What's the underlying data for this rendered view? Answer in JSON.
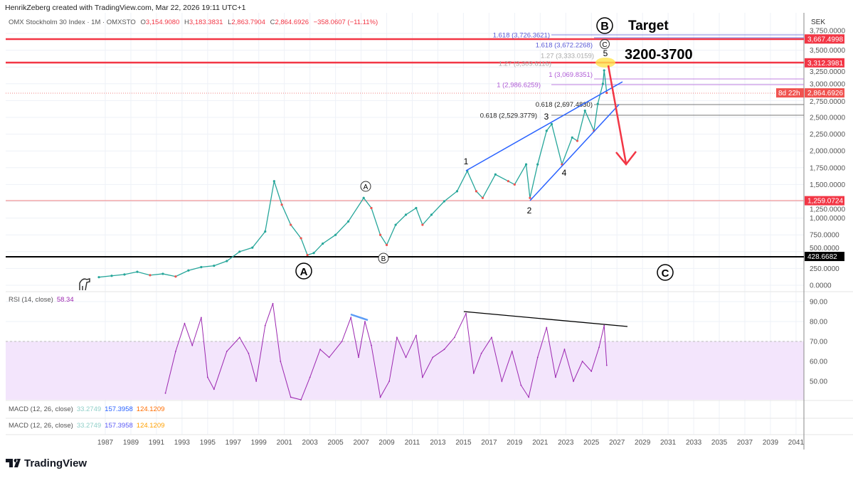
{
  "header": {
    "credit": "HenrikZeberg created with TradingView.com, Mar 22, 2026 19:11 UTC+1"
  },
  "legend": {
    "symbol": "OMX Stockholm 30 Index · 1M · OMXSTO",
    "o_label": "O",
    "open": "3,154.9080",
    "h_label": "H",
    "high": "3,183.3831",
    "l_label": "L",
    "low": "2,863.7904",
    "c_label": "C",
    "close": "2,864.6926",
    "change": "−358.0607 (−11.11%)"
  },
  "price_axis": {
    "currency": "SEK",
    "ticks": [
      "3,750.0000",
      "3,500.0000",
      "3,250.0000",
      "3,000.0000",
      "2,750.0000",
      "2,500.0000",
      "2,250.0000",
      "2,000.0000",
      "1,750.0000",
      "1,500.0000",
      "1,250.0000",
      "1,000.0000",
      "750.0000",
      "500.0000",
      "250.0000",
      "0.0000"
    ],
    "tick_values": [
      3750,
      3500,
      3250,
      3000,
      2750,
      2500,
      2250,
      2000,
      1750,
      1500,
      1250,
      1000,
      750,
      500,
      250,
      0
    ],
    "badges": [
      {
        "text": "3,667.4998",
        "value": 3667.4998,
        "color": "#f23645"
      },
      {
        "text": "3,312.3981",
        "value": 3312.3981,
        "color": "#f23645"
      },
      {
        "text": "2,864.6926",
        "value": 2864.6926,
        "color": "#f05350",
        "sub": "8d 22h"
      },
      {
        "text": "1,259.0724",
        "value": 1259.0724,
        "color": "#f23645"
      },
      {
        "text": "428.6682",
        "value": 428.6682,
        "color": "#000000"
      }
    ]
  },
  "time_axis": {
    "ticks": [
      "1987",
      "1989",
      "1991",
      "1993",
      "1995",
      "1997",
      "1999",
      "2001",
      "2003",
      "2005",
      "2007",
      "2009",
      "2011",
      "2013",
      "2015",
      "2017",
      "2019",
      "2021",
      "2023",
      "2025",
      "2027",
      "2029",
      "2031",
      "2033",
      "2035",
      "2037",
      "2039",
      "2041"
    ]
  },
  "fib_labels": [
    {
      "text": "1.618 (3,726.3621)",
      "value": 3726.3621,
      "color": "#5b5bd6"
    },
    {
      "text": "1.618 (3,672.2268)",
      "value": 3672.2268,
      "color": "#5b5bd6"
    },
    {
      "text": "1.27 (3,309.6116)",
      "value": 3309.6116,
      "color": "#aaaaaa"
    },
    {
      "text": "1.27 (3,333.0159)",
      "value": 3333.0159,
      "color": "#aaaaaa"
    },
    {
      "text": "1 (3,069.8351)",
      "value": 3069.8351,
      "color": "#b05cd6"
    },
    {
      "text": "1 (2,986.6259)",
      "value": 2986.6259,
      "color": "#b05cd6"
    },
    {
      "text": "0.618 (2,697.4830)",
      "value": 2697.483,
      "color": "#222222"
    },
    {
      "text": "0.618 (2,529.3779)",
      "value": 2529.3779,
      "color": "#222222"
    }
  ],
  "annotations": {
    "target": "Target",
    "range": "3200-3700",
    "wave_B_big": "B",
    "wave_C_small": "C",
    "wave_5": "5",
    "wave_1": "1",
    "wave_2": "2",
    "wave_3": "3",
    "wave_4": "4",
    "wave_A_small": "A",
    "wave_B_small": "B",
    "wave_A_big": "A",
    "wave_C_big": "C"
  },
  "rsi": {
    "label": "RSI (14, close)",
    "value": "58.34",
    "color": "#9c27b0",
    "ticks": [
      "90.00",
      "80.00",
      "70.00",
      "60.00",
      "50.00"
    ],
    "tick_values": [
      90,
      80,
      70,
      60,
      50
    ]
  },
  "macd": [
    {
      "label": "MACD (12, 26, close)",
      "v1": "33.2749",
      "v2": "157.3958",
      "v3": "124.1209",
      "c1": "#a5dbd6",
      "c2": "#2962ff",
      "c3": "#ff6d00"
    },
    {
      "label": "MACD (12, 26, close)",
      "v1": "33.2749",
      "v2": "157.3958",
      "v3": "124.1209",
      "c1": "#a5dbd6",
      "c2": "#2962ff",
      "c3": "#ffa000"
    }
  ],
  "footer": {
    "logo": "TradingView"
  },
  "chart_data": [
    {
      "type": "line",
      "title": "OMX Stockholm 30 Index · 1M · OMXSTO",
      "ylim": [
        0,
        3850
      ],
      "xlim": [
        1986,
        2042
      ],
      "grid": true,
      "x": [
        1986.5,
        1987.5,
        1988.5,
        1989.5,
        1990.5,
        1991.5,
        1992.5,
        1993.5,
        1994.5,
        1995.5,
        1996.5,
        1997.5,
        1998.5,
        1999.5,
        2000.2,
        2000.8,
        2001.5,
        2002.3,
        2002.8,
        2003.3,
        2004,
        2005,
        2006,
        2007.2,
        2007.8,
        2008.5,
        2009,
        2009.7,
        2010.5,
        2011.3,
        2011.8,
        2012.5,
        2013.5,
        2014.5,
        2015.3,
        2016,
        2016.5,
        2017.5,
        2018.5,
        2019,
        2019.9,
        2020.2,
        2020.8,
        2021.5,
        2021.9,
        2022.7,
        2023.5,
        2023.9,
        2024.5,
        2025.2,
        2025.5,
        2025.9,
        2026.0,
        2026.2
      ],
      "y": [
        120,
        140,
        160,
        200,
        150,
        170,
        130,
        220,
        270,
        290,
        360,
        500,
        560,
        800,
        1550,
        1200,
        900,
        700,
        450,
        480,
        620,
        750,
        950,
        1300,
        1150,
        750,
        600,
        900,
        1050,
        1150,
        900,
        1050,
        1250,
        1400,
        1700,
        1400,
        1300,
        1650,
        1550,
        1500,
        1800,
        1300,
        1800,
        2300,
        2400,
        1800,
        2200,
        2150,
        2600,
        2300,
        2700,
        3000,
        3200,
        2865
      ]
    },
    {
      "type": "line",
      "title": "RSI (14, close)",
      "ylim": [
        40,
        95
      ],
      "x": [
        1991.7,
        1992.5,
        1993.2,
        1993.8,
        1994.5,
        1995,
        1995.5,
        1996.5,
        1997.5,
        1998.2,
        1998.8,
        1999.5,
        2000.1,
        2000.7,
        2001.5,
        2002.3,
        2003,
        2003.8,
        2004.5,
        2005.5,
        2006.2,
        2006.8,
        2007.3,
        2007.8,
        2008.5,
        2009.2,
        2009.8,
        2010.5,
        2011.3,
        2011.8,
        2012.6,
        2013.5,
        2014.3,
        2015.2,
        2015.8,
        2016.4,
        2017.2,
        2018,
        2018.8,
        2019.5,
        2020.1,
        2020.8,
        2021.5,
        2022.2,
        2022.9,
        2023.6,
        2024.3,
        2025,
        2025.6,
        2026.0,
        2026.2
      ],
      "y": [
        44,
        65,
        79,
        68,
        82,
        52,
        46,
        65,
        72,
        64,
        50,
        78,
        89,
        60,
        42,
        40,
        52,
        66,
        62,
        70,
        82,
        62,
        80,
        68,
        42,
        50,
        72,
        62,
        73,
        52,
        62,
        66,
        72,
        84,
        54,
        64,
        72,
        50,
        65,
        48,
        42,
        62,
        77,
        52,
        66,
        50,
        60,
        55,
        67,
        78,
        58
      ]
    }
  ]
}
